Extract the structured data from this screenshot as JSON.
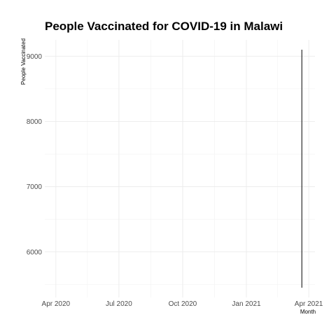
{
  "chart_data": {
    "type": "line",
    "title": "People Vaccinated for COVID-19 in Malawi",
    "xlabel": "Month",
    "ylabel": "People Vaccinated",
    "x_ticks": [
      {
        "date": "2020-04-01",
        "label": "Apr 2020"
      },
      {
        "date": "2020-07-01",
        "label": "Jul 2020"
      },
      {
        "date": "2020-10-01",
        "label": "Oct 2020"
      },
      {
        "date": "2021-01-01",
        "label": "Jan 2021"
      },
      {
        "date": "2021-04-01",
        "label": "Apr 2021"
      }
    ],
    "y_ticks": [
      6000,
      7000,
      8000,
      9000
    ],
    "xlim": [
      "2020-03-16",
      "2021-04-10"
    ],
    "ylim": [
      5300,
      9250
    ],
    "grid": true,
    "series": [
      {
        "color": "#000000",
        "points": [
          {
            "x": "2021-03-22",
            "y": 5450
          },
          {
            "x": "2021-03-22",
            "y": 9100
          }
        ]
      }
    ]
  }
}
